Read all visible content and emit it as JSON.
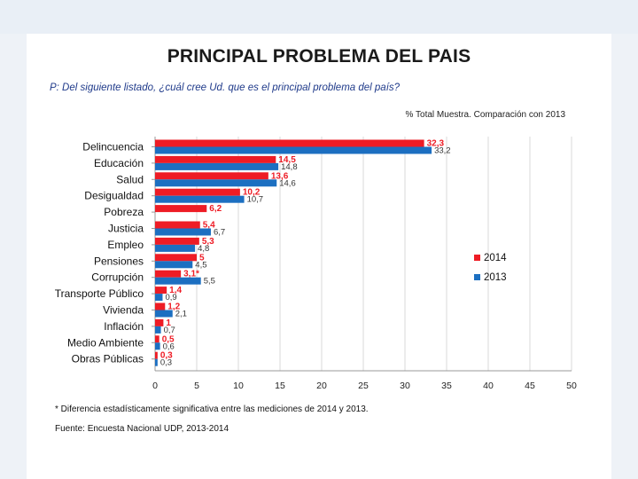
{
  "title": "PRINCIPAL PROBLEMA DEL PAIS",
  "question": "P: Del siguiente listado, ¿cuál cree Ud. que es el principal problema del país?",
  "subtitle": "% Total Muestra. Comparación con 2013",
  "footnote": "* Diferencia estadísticamente significativa entre las mediciones de 2014 y 2013.",
  "source": "Fuente: Encuesta Nacional UDP, 2013-2014",
  "colors": {
    "y2014": "#ee1c25",
    "y2013": "#1c6fc1"
  },
  "chart_data": {
    "type": "bar",
    "orientation": "horizontal",
    "categories": [
      "Delincuencia",
      "Educación",
      "Salud",
      "Desigualdad",
      "Pobreza",
      "Justicia",
      "Empleo",
      "Pensiones",
      "Corrupción",
      "Transporte Público",
      "Vivienda",
      "Inflación",
      "Medio Ambiente",
      "Obras Públicas"
    ],
    "series": [
      {
        "name": "2014",
        "values": [
          32.3,
          14.5,
          13.6,
          10.2,
          6.2,
          5.4,
          5.3,
          5,
          3.1,
          1.4,
          1.2,
          1,
          0.5,
          0.3
        ],
        "labels": [
          "32,3",
          "14,5",
          "13,6",
          "10,2",
          "6,2",
          "5,4",
          "5,3",
          "5",
          "3,1*",
          "1,4",
          "1,2",
          "1",
          "0,5",
          "0,3"
        ]
      },
      {
        "name": "2013",
        "values": [
          33.2,
          14.8,
          14.6,
          10.7,
          null,
          6.7,
          4.8,
          4.5,
          5.5,
          0.9,
          2.1,
          0.7,
          0.6,
          0.3
        ],
        "labels": [
          "33,2",
          "14,8",
          "14,6",
          "10,7",
          "",
          "6,7",
          "4,8",
          "4,5",
          "5,5",
          "0,9",
          "2,1",
          "0,7",
          "0,6",
          "0,3"
        ]
      }
    ],
    "xlim": [
      0,
      50
    ],
    "xticks": [
      0,
      5,
      10,
      15,
      20,
      25,
      30,
      35,
      40,
      45,
      50
    ],
    "grid": true,
    "legend": [
      "2014",
      "2013"
    ],
    "legend_position": "right"
  }
}
